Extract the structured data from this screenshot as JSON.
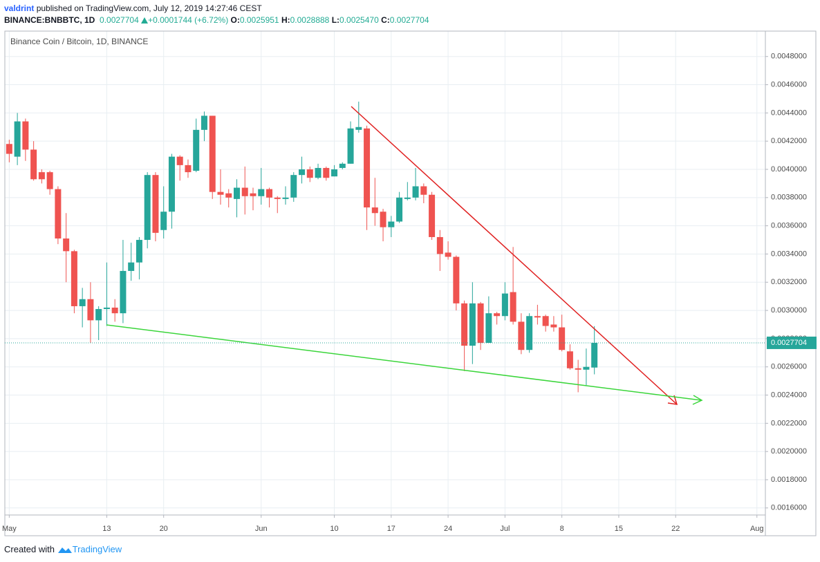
{
  "header": {
    "author": "valdrint",
    "published": "published on TradingView.com, July 12, 2019 14:27:46 CEST",
    "symbol": "BINANCE:BNBBTC, 1D",
    "last": "0.0027704",
    "change": "+0.0001744 (+6.72%)",
    "ohlc": [
      {
        "label": "O:",
        "value": "0.0025951"
      },
      {
        "label": "H:",
        "value": "0.0028888"
      },
      {
        "label": "L:",
        "value": "0.0025470"
      },
      {
        "label": "C:",
        "value": "0.0027704"
      }
    ]
  },
  "footer": {
    "created": "Created with",
    "brand": "TradingView"
  },
  "chart_data": {
    "type": "candlestick",
    "title": "Binance Coin / Bitcoin, 1D, BINANCE",
    "up_color": "#26a69a",
    "down_color": "#ef5350",
    "grid": true,
    "x": [
      "2019-05-01",
      "2019-05-02",
      "2019-05-03",
      "2019-05-04",
      "2019-05-05",
      "2019-05-06",
      "2019-05-07",
      "2019-05-08",
      "2019-05-09",
      "2019-05-10",
      "2019-05-11",
      "2019-05-12",
      "2019-05-13",
      "2019-05-14",
      "2019-05-15",
      "2019-05-16",
      "2019-05-17",
      "2019-05-18",
      "2019-05-19",
      "2019-05-20",
      "2019-05-21",
      "2019-05-22",
      "2019-05-23",
      "2019-05-24",
      "2019-05-25",
      "2019-05-26",
      "2019-05-27",
      "2019-05-28",
      "2019-05-29",
      "2019-05-30",
      "2019-05-31",
      "2019-06-01",
      "2019-06-02",
      "2019-06-03",
      "2019-06-04",
      "2019-06-05",
      "2019-06-06",
      "2019-06-07",
      "2019-06-08",
      "2019-06-09",
      "2019-06-10",
      "2019-06-11",
      "2019-06-12",
      "2019-06-13",
      "2019-06-14",
      "2019-06-15",
      "2019-06-16",
      "2019-06-17",
      "2019-06-18",
      "2019-06-19",
      "2019-06-20",
      "2019-06-21",
      "2019-06-22",
      "2019-06-23",
      "2019-06-24",
      "2019-06-25",
      "2019-06-26",
      "2019-06-27",
      "2019-06-28",
      "2019-06-29",
      "2019-06-30",
      "2019-07-01",
      "2019-07-02",
      "2019-07-03",
      "2019-07-04",
      "2019-07-05",
      "2019-07-06",
      "2019-07-07",
      "2019-07-08",
      "2019-07-09",
      "2019-07-10",
      "2019-07-11",
      "2019-07-12"
    ],
    "open": [
      0.00418,
      0.00409,
      0.00434,
      0.00414,
      0.00398,
      0.00398,
      0.00386,
      0.00351,
      0.00342,
      0.00303,
      0.00308,
      0.00293,
      0.00301,
      0.00302,
      0.00298,
      0.00328,
      0.00334,
      0.0035,
      0.00396,
      0.00357,
      0.0037,
      0.00409,
      0.00403,
      0.00399,
      0.00428,
      0.00438,
      0.00384,
      0.00383,
      0.00379,
      0.00387,
      0.00383,
      0.00381,
      0.00386,
      0.0038,
      0.00379,
      0.0038,
      0.00396,
      0.004,
      0.00394,
      0.00401,
      0.00395,
      0.00401,
      0.00404,
      0.00428,
      0.00429,
      0.00373,
      0.0037,
      0.00359,
      0.00363,
      0.00379,
      0.0038,
      0.00388,
      0.00382,
      0.00352,
      0.00341,
      0.00338,
      0.00305,
      0.00275,
      0.00305,
      0.00277,
      0.00298,
      0.00296,
      0.00313,
      0.00292,
      0.00272,
      0.00296,
      0.00296,
      0.0029,
      0.00288,
      0.00271,
      0.00259,
      0.00258,
      0.0025951
    ],
    "high": [
      0.00421,
      0.0044,
      0.00436,
      0.0042,
      0.004,
      0.00399,
      0.00388,
      0.00369,
      0.00343,
      0.00316,
      0.0032,
      0.00303,
      0.00334,
      0.00308,
      0.0035,
      0.00348,
      0.00352,
      0.00398,
      0.00398,
      0.00388,
      0.00411,
      0.0041,
      0.00407,
      0.00436,
      0.00441,
      0.00438,
      0.004,
      0.00386,
      0.00393,
      0.00402,
      0.00387,
      0.00401,
      0.00387,
      0.00381,
      0.00388,
      0.00398,
      0.00409,
      0.00402,
      0.00404,
      0.00402,
      0.00403,
      0.00405,
      0.00434,
      0.00448,
      0.00431,
      0.00394,
      0.00372,
      0.00367,
      0.00384,
      0.00391,
      0.00401,
      0.0039,
      0.00384,
      0.00357,
      0.00349,
      0.00339,
      0.00307,
      0.0032,
      0.00306,
      0.0031,
      0.00299,
      0.0032,
      0.00345,
      0.00298,
      0.00298,
      0.00304,
      0.00297,
      0.00296,
      0.00297,
      0.00276,
      0.00265,
      0.00273,
      0.0028888
    ],
    "low": [
      0.00405,
      0.00403,
      0.00406,
      0.00392,
      0.0039,
      0.00382,
      0.00347,
      0.0032,
      0.00298,
      0.00288,
      0.00277,
      0.00279,
      0.00289,
      0.00292,
      0.00291,
      0.00321,
      0.00322,
      0.00344,
      0.00349,
      0.00351,
      0.00358,
      0.00392,
      0.00394,
      0.00398,
      0.0042,
      0.00379,
      0.00375,
      0.00373,
      0.00366,
      0.00368,
      0.00371,
      0.00375,
      0.00373,
      0.00369,
      0.00375,
      0.00377,
      0.0039,
      0.00391,
      0.00393,
      0.00392,
      0.00395,
      0.004,
      0.00404,
      0.00426,
      0.00357,
      0.0036,
      0.00349,
      0.00352,
      0.00362,
      0.00378,
      0.00378,
      0.00376,
      0.0035,
      0.00328,
      0.00336,
      0.003,
      0.00257,
      0.00262,
      0.00272,
      0.00277,
      0.0029,
      0.00293,
      0.0029,
      0.00269,
      0.0027,
      0.0029,
      0.00285,
      0.00285,
      0.00271,
      0.00258,
      0.00242,
      0.00247,
      0.002547
    ],
    "close": [
      0.00411,
      0.00434,
      0.00414,
      0.00393,
      0.00393,
      0.00386,
      0.00351,
      0.00342,
      0.00303,
      0.00308,
      0.00293,
      0.00301,
      0.00302,
      0.00298,
      0.00328,
      0.00334,
      0.0035,
      0.00396,
      0.00355,
      0.0037,
      0.00409,
      0.00403,
      0.00398,
      0.00428,
      0.00438,
      0.00384,
      0.00382,
      0.0038,
      0.00387,
      0.00381,
      0.00381,
      0.00386,
      0.0038,
      0.00379,
      0.0038,
      0.00396,
      0.004,
      0.00394,
      0.00401,
      0.00394,
      0.004,
      0.00404,
      0.00429,
      0.0043,
      0.00373,
      0.00369,
      0.00359,
      0.00363,
      0.0038,
      0.0038,
      0.00388,
      0.00382,
      0.00352,
      0.0034,
      0.00338,
      0.00305,
      0.00275,
      0.00305,
      0.00277,
      0.00298,
      0.00296,
      0.00312,
      0.00292,
      0.00272,
      0.00296,
      0.00295,
      0.00289,
      0.00288,
      0.00272,
      0.00259,
      0.00258,
      0.0026,
      0.0027704
    ],
    "ylim": [
      0.00155,
      0.00498
    ],
    "yticks": [
      {
        "value": 0.0016,
        "label": "0.0016000"
      },
      {
        "value": 0.0018,
        "label": "0.0018000"
      },
      {
        "value": 0.002,
        "label": "0.0020000"
      },
      {
        "value": 0.0022,
        "label": "0.0022000"
      },
      {
        "value": 0.0024,
        "label": "0.0024000"
      },
      {
        "value": 0.0026,
        "label": "0.0026000"
      },
      {
        "value": 0.0028,
        "label": "0.0028000"
      },
      {
        "value": 0.003,
        "label": "0.0030000"
      },
      {
        "value": 0.0032,
        "label": "0.0032000"
      },
      {
        "value": 0.0034,
        "label": "0.0034000"
      },
      {
        "value": 0.0036,
        "label": "0.0036000"
      },
      {
        "value": 0.0038,
        "label": "0.0038000"
      },
      {
        "value": 0.004,
        "label": "0.0040000"
      },
      {
        "value": 0.0042,
        "label": "0.0042000"
      },
      {
        "value": 0.0044,
        "label": "0.0044000"
      },
      {
        "value": 0.0046,
        "label": "0.0046000"
      },
      {
        "value": 0.0048,
        "label": "0.0048000"
      }
    ],
    "xlim": [
      "2019-04-30T11:00:00Z",
      "2019-08-02T01:00:00Z"
    ],
    "xticks": [
      {
        "value": "2019-05-01",
        "label": "May"
      },
      {
        "value": "2019-05-13",
        "label": "13"
      },
      {
        "value": "2019-05-20",
        "label": "20"
      },
      {
        "value": "2019-06-01",
        "label": "Jun"
      },
      {
        "value": "2019-06-10",
        "label": "10"
      },
      {
        "value": "2019-06-17",
        "label": "17"
      },
      {
        "value": "2019-06-24",
        "label": "24"
      },
      {
        "value": "2019-07-01",
        "label": "Jul"
      },
      {
        "value": "2019-07-08",
        "label": "8"
      },
      {
        "value": "2019-07-15",
        "label": "15"
      },
      {
        "value": "2019-07-22",
        "label": "22"
      },
      {
        "value": "2019-08-01",
        "label": "Aug"
      }
    ],
    "last_price": 0.0027704
  }
}
